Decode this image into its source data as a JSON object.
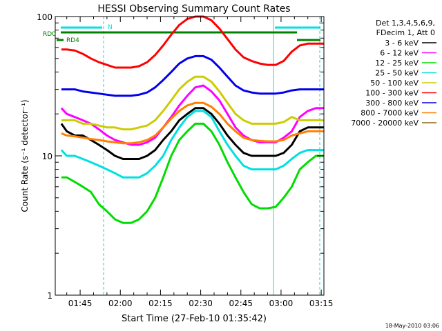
{
  "chart_data": {
    "type": "line",
    "title": "HESSI Observing Summary Count Rates",
    "xlabel": "Start Time (27-Feb-10 01:35:42)",
    "ylabel": "Count Rate (s⁻¹ detector⁻¹)",
    "yscale": "log",
    "ylim": [
      1,
      100
    ],
    "xlim_minutes": [
      95.7,
      196.0
    ],
    "x_tick_labels": [
      "01:45",
      "02:00",
      "02:15",
      "02:30",
      "02:45",
      "03:00",
      "03:15"
    ],
    "x_tick_minutes": [
      105,
      120,
      135,
      150,
      165,
      180,
      195
    ],
    "y_tick_labels": [
      "1",
      "10",
      "100"
    ],
    "y_tick_values": [
      1,
      10,
      100
    ],
    "legend": {
      "placement": "right",
      "header": [
        "Det 1,3,4,5,6,9,",
        "FDecim 1, Att 0"
      ],
      "entries": [
        {
          "label": "3 - 6 keV",
          "color": "#000000"
        },
        {
          "label": "6 - 12 keV",
          "color": "#ff00ff"
        },
        {
          "label": "12 - 25 keV",
          "color": "#00dd00"
        },
        {
          "label": "25 - 50 keV",
          "color": "#00e0e0"
        },
        {
          "label": "50 - 100 keV",
          "color": "#cccc00"
        },
        {
          "label": "100 - 300 keV",
          "color": "#ff0000"
        },
        {
          "label": "300 - 800 keV",
          "color": "#0000ee"
        },
        {
          "label": "800 - 7000 keV",
          "color": "#ff8000"
        },
        {
          "label": "7000 - 20000 keV",
          "color": "#8b6914"
        }
      ]
    },
    "series_x_minutes": [
      98,
      100,
      103,
      106,
      109,
      112,
      115,
      118,
      121,
      124,
      127,
      130,
      133,
      136,
      139,
      142,
      145,
      148,
      151,
      154,
      157,
      160,
      163,
      166,
      169,
      172,
      175,
      178,
      181,
      184,
      187,
      190,
      193,
      196
    ],
    "series": [
      {
        "name": "3 - 6 keV",
        "color": "#000000",
        "values": [
          17,
          15,
          14,
          14,
          13,
          12,
          11,
          10,
          9.5,
          9.5,
          9.5,
          10,
          11,
          13,
          15,
          18,
          20,
          22,
          22,
          20,
          17,
          14,
          12,
          10.5,
          10,
          10,
          10,
          10,
          10.5,
          12,
          15,
          16,
          16,
          16
        ]
      },
      {
        "name": "6 - 12 keV",
        "color": "#ff00ff",
        "values": [
          22,
          20,
          19,
          18,
          17,
          15.5,
          14,
          13,
          12.5,
          12,
          12,
          12.5,
          13.5,
          16,
          19,
          23,
          27,
          31,
          32,
          29,
          25,
          20,
          16,
          14,
          13,
          12.5,
          12.5,
          12.5,
          13.5,
          15,
          19,
          21,
          22,
          22
        ]
      },
      {
        "name": "12 - 25 keV",
        "color": "#00dd00",
        "values": [
          7,
          7,
          6.5,
          6,
          5.5,
          4.5,
          4,
          3.5,
          3.3,
          3.3,
          3.5,
          4,
          5,
          7,
          10,
          13,
          15,
          17,
          17,
          15,
          12,
          9,
          7,
          5.5,
          4.5,
          4.2,
          4.2,
          4.3,
          5,
          6,
          8,
          9,
          10,
          10
        ]
      },
      {
        "name": "25 - 50 keV",
        "color": "#00e0e0",
        "values": [
          11,
          10,
          10,
          9.5,
          9,
          8.5,
          8,
          7.5,
          7,
          7,
          7,
          7.5,
          8.5,
          10,
          13,
          16,
          19,
          21,
          21,
          19,
          15,
          12,
          10,
          8.5,
          8,
          8,
          8,
          8,
          8.5,
          9.5,
          10.5,
          11,
          11,
          11
        ]
      },
      {
        "name": "50 - 100 keV",
        "color": "#cccc00",
        "values": [
          18,
          18,
          18,
          17,
          17,
          16.5,
          16,
          16,
          15.5,
          15.5,
          16,
          16.5,
          18,
          21,
          25,
          30,
          34,
          37,
          37,
          34,
          29,
          24,
          20,
          18,
          17,
          17,
          17,
          17,
          17.5,
          19,
          18,
          18,
          18,
          18
        ]
      },
      {
        "name": "100 - 300 keV",
        "color": "#ff0000",
        "values": [
          58,
          58,
          57,
          54,
          50,
          47,
          45,
          43,
          43,
          43,
          44,
          47,
          53,
          62,
          74,
          87,
          96,
          100,
          100,
          94,
          82,
          69,
          58,
          51,
          48,
          46,
          45,
          45,
          48,
          56,
          62,
          64,
          64,
          64
        ]
      },
      {
        "name": "300 - 800 keV",
        "color": "#0000ee",
        "values": [
          30,
          30,
          30,
          29,
          28.5,
          28,
          27.5,
          27,
          27,
          27,
          27.5,
          28.5,
          31,
          35,
          40,
          46,
          50,
          52,
          52,
          49,
          43,
          37,
          32,
          29.5,
          28.5,
          28,
          28,
          28,
          28.5,
          29.5,
          30,
          30,
          30,
          30
        ]
      },
      {
        "name": "800 - 7000 keV",
        "color": "#ff8000",
        "values": [
          14.5,
          14,
          13.8,
          13.5,
          13.2,
          13,
          12.7,
          12.5,
          12.3,
          12.3,
          12.5,
          13,
          14,
          16,
          18.5,
          21,
          23,
          24,
          24,
          22.5,
          20,
          17,
          15,
          13.5,
          13,
          12.8,
          12.7,
          12.7,
          13,
          14,
          14.5,
          15,
          15,
          15
        ]
      }
    ],
    "annotations": [
      {
        "text": "RD0",
        "color": "#008000"
      },
      {
        "text": "RD4",
        "color": "#008000"
      },
      {
        "text": "N",
        "color": "#00e0e0"
      }
    ],
    "footer": "18-May-2010 03:06"
  }
}
